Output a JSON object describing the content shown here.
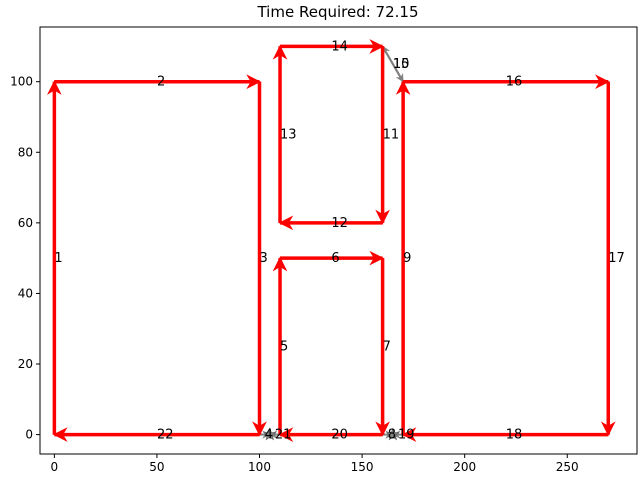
{
  "chart_data": {
    "type": "line",
    "title": "Time Required: 72.15",
    "xlabel": "",
    "ylabel": "",
    "xlim": [
      -7,
      284
    ],
    "ylim": [
      -5.5,
      115.5
    ],
    "xticks": [
      0,
      50,
      100,
      150,
      200,
      250
    ],
    "yticks": [
      0,
      20,
      40,
      60,
      80,
      100
    ],
    "grid": false,
    "colors": {
      "path": "#ff0000",
      "transit": "#808080",
      "axis": "#000000"
    },
    "segments": [
      {
        "id": "1",
        "from": [
          0,
          0
        ],
        "to": [
          0,
          100
        ],
        "kind": "path"
      },
      {
        "id": "2",
        "from": [
          0,
          100
        ],
        "to": [
          100,
          100
        ],
        "kind": "path"
      },
      {
        "id": "3",
        "from": [
          100,
          100
        ],
        "to": [
          100,
          0
        ],
        "kind": "path"
      },
      {
        "id": "4",
        "from": [
          100,
          0
        ],
        "to": [
          105,
          0
        ],
        "kind": "transit"
      },
      {
        "id": "5",
        "from": [
          110,
          0
        ],
        "to": [
          110,
          50
        ],
        "kind": "path"
      },
      {
        "id": "6",
        "from": [
          110,
          50
        ],
        "to": [
          160,
          50
        ],
        "kind": "path"
      },
      {
        "id": "7",
        "from": [
          160,
          50
        ],
        "to": [
          160,
          0
        ],
        "kind": "path"
      },
      {
        "id": "8",
        "from": [
          160,
          0
        ],
        "to": [
          165,
          0
        ],
        "kind": "transit"
      },
      {
        "id": "9",
        "from": [
          170,
          0
        ],
        "to": [
          170,
          100
        ],
        "kind": "path"
      },
      {
        "id": "10",
        "from": [
          170,
          100
        ],
        "to": [
          160,
          110
        ],
        "kind": "transit"
      },
      {
        "id": "11",
        "from": [
          160,
          110
        ],
        "to": [
          160,
          60
        ],
        "kind": "path"
      },
      {
        "id": "12",
        "from": [
          160,
          60
        ],
        "to": [
          110,
          60
        ],
        "kind": "path"
      },
      {
        "id": "13",
        "from": [
          110,
          60
        ],
        "to": [
          110,
          110
        ],
        "kind": "path"
      },
      {
        "id": "14",
        "from": [
          110,
          110
        ],
        "to": [
          160,
          110
        ],
        "kind": "path"
      },
      {
        "id": "15",
        "from": [
          160,
          110
        ],
        "to": [
          170,
          100
        ],
        "kind": "transit"
      },
      {
        "id": "16",
        "from": [
          170,
          100
        ],
        "to": [
          270,
          100
        ],
        "kind": "path"
      },
      {
        "id": "17",
        "from": [
          270,
          100
        ],
        "to": [
          270,
          0
        ],
        "kind": "path"
      },
      {
        "id": "18",
        "from": [
          270,
          0
        ],
        "to": [
          170,
          0
        ],
        "kind": "path"
      },
      {
        "id": "19",
        "from": [
          170,
          0
        ],
        "to": [
          165,
          0
        ],
        "kind": "transit"
      },
      {
        "id": "20",
        "from": [
          160,
          0
        ],
        "to": [
          110,
          0
        ],
        "kind": "path"
      },
      {
        "id": "21",
        "from": [
          110,
          0
        ],
        "to": [
          105,
          0
        ],
        "kind": "transit"
      },
      {
        "id": "22",
        "from": [
          100,
          0
        ],
        "to": [
          0,
          0
        ],
        "kind": "path"
      }
    ],
    "depots": [
      [
        105,
        0
      ],
      [
        165,
        0
      ]
    ]
  }
}
